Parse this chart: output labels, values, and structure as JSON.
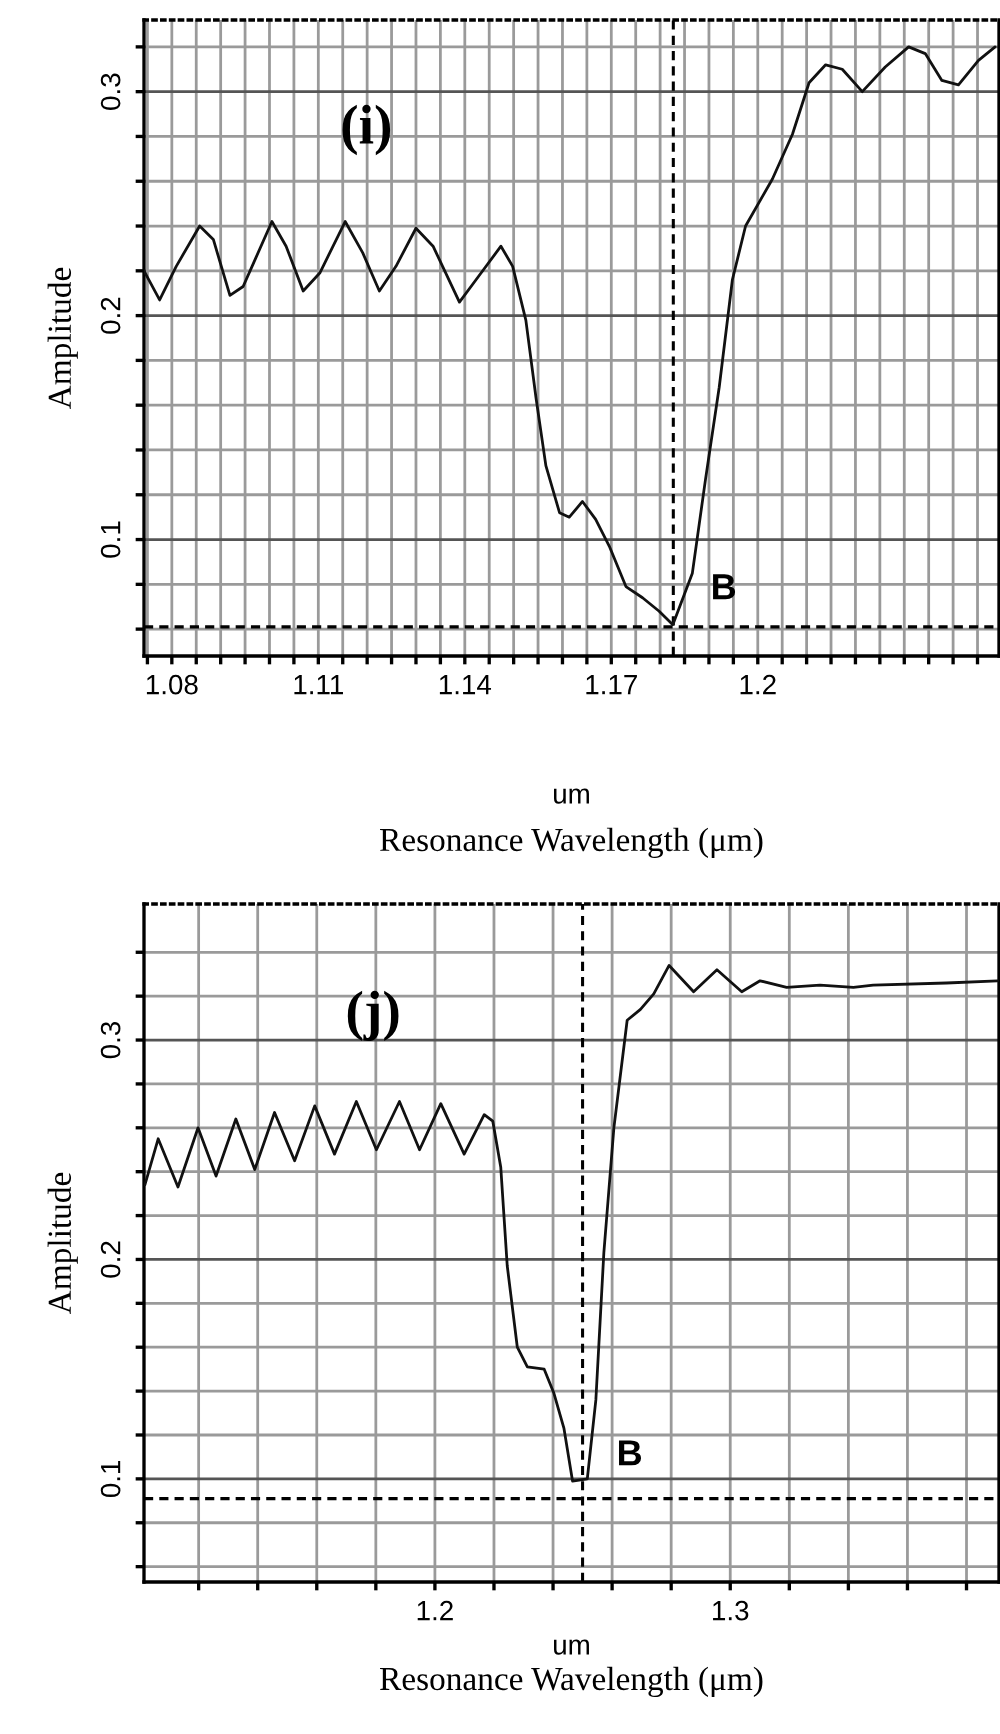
{
  "chart_data": [
    {
      "type": "line",
      "xlabel": "um",
      "ylabel": "Amplitude",
      "grid": true,
      "line_style": "solid",
      "marker": "none",
      "xlim": [
        1.0743,
        1.2494
      ],
      "ylim": [
        0.048,
        0.332
      ],
      "xticks": [
        {
          "value": 1.075,
          "label": null
        },
        {
          "value": 1.08,
          "label": "1.08"
        },
        {
          "value": 1.085,
          "label": null
        },
        {
          "value": 1.09,
          "label": null
        },
        {
          "value": 1.095,
          "label": null
        },
        {
          "value": 1.1,
          "label": null
        },
        {
          "value": 1.105,
          "label": null
        },
        {
          "value": 1.11,
          "label": "1.11"
        },
        {
          "value": 1.115,
          "label": null
        },
        {
          "value": 1.12,
          "label": null
        },
        {
          "value": 1.125,
          "label": null
        },
        {
          "value": 1.13,
          "label": null
        },
        {
          "value": 1.135,
          "label": null
        },
        {
          "value": 1.14,
          "label": "1.14"
        },
        {
          "value": 1.145,
          "label": null
        },
        {
          "value": 1.15,
          "label": null
        },
        {
          "value": 1.155,
          "label": null
        },
        {
          "value": 1.16,
          "label": null
        },
        {
          "value": 1.165,
          "label": null
        },
        {
          "value": 1.17,
          "label": "1.17"
        },
        {
          "value": 1.175,
          "label": null
        },
        {
          "value": 1.18,
          "label": null
        },
        {
          "value": 1.185,
          "label": null
        },
        {
          "value": 1.19,
          "label": null
        },
        {
          "value": 1.195,
          "label": null
        },
        {
          "value": 1.2,
          "label": "1.2"
        },
        {
          "value": 1.205,
          "label": null
        },
        {
          "value": 1.21,
          "label": null
        },
        {
          "value": 1.215,
          "label": null
        },
        {
          "value": 1.22,
          "label": null
        },
        {
          "value": 1.225,
          "label": null
        },
        {
          "value": 1.23,
          "label": null
        },
        {
          "value": 1.235,
          "label": null
        },
        {
          "value": 1.24,
          "label": null
        },
        {
          "value": 1.245,
          "label": null
        }
      ],
      "yticks": [
        {
          "value": 0.06,
          "label": null
        },
        {
          "value": 0.08,
          "label": null
        },
        0.1,
        {
          "value": 0.12,
          "label": null
        },
        {
          "value": 0.14,
          "label": null
        },
        {
          "value": 0.16,
          "label": null
        },
        {
          "value": 0.18,
          "label": null
        },
        0.2,
        {
          "value": 0.22,
          "label": null
        },
        {
          "value": 0.24,
          "label": null
        },
        {
          "value": 0.26,
          "label": null
        },
        {
          "value": 0.28,
          "label": null
        },
        0.3,
        {
          "value": 0.32,
          "label": null
        }
      ],
      "series": [
        {
          "color": "#111111",
          "x": [
            1.0743,
            1.0775,
            1.0809,
            1.0857,
            1.0885,
            1.0919,
            1.0946,
            1.1005,
            1.1034,
            1.1069,
            1.1103,
            1.1155,
            1.1191,
            1.1225,
            1.1259,
            1.13,
            1.1335,
            1.1389,
            1.1423,
            1.1474,
            1.1498,
            1.1525,
            1.1546,
            1.1566,
            1.1594,
            1.1614,
            1.1641,
            1.1668,
            1.1696,
            1.173,
            1.1764,
            1.1798,
            1.1826,
            1.1866,
            1.1893,
            1.1921,
            1.1948,
            1.1975,
            1.203,
            1.2071,
            1.2105,
            1.2139,
            1.2173,
            1.2214,
            1.2261,
            1.2309,
            1.2343,
            1.2377,
            1.2411,
            1.2452,
            1.2486
          ],
          "values": [
            0.22,
            0.207,
            0.222,
            0.24,
            0.234,
            0.209,
            0.213,
            0.242,
            0.231,
            0.211,
            0.219,
            0.242,
            0.228,
            0.211,
            0.222,
            0.239,
            0.231,
            0.206,
            0.216,
            0.231,
            0.222,
            0.198,
            0.163,
            0.133,
            0.112,
            0.11,
            0.117,
            0.109,
            0.097,
            0.079,
            0.074,
            0.068,
            0.062,
            0.085,
            0.127,
            0.168,
            0.216,
            0.24,
            0.261,
            0.281,
            0.304,
            0.312,
            0.31,
            0.3,
            0.311,
            0.32,
            0.317,
            0.305,
            0.303,
            0.314,
            0.32
          ]
        }
      ],
      "ref_lines": [
        {
          "axis": "y",
          "value": 0.061,
          "line_style": "dashed",
          "color": "#000000"
        },
        {
          "axis": "x",
          "value": 1.1827,
          "line_style": "dashed",
          "color": "#000000"
        }
      ],
      "annotations": [
        "(i)",
        "B",
        "Resonance Wavelength (μm)"
      ]
    },
    {
      "type": "line",
      "xlabel": "um",
      "ylabel": "Amplitude",
      "grid": true,
      "line_style": "solid",
      "marker": "none",
      "xlim": [
        1.1015,
        1.391
      ],
      "ylim": [
        0.053,
        0.362
      ],
      "xticks": [
        {
          "value": 1.12,
          "label": null
        },
        {
          "value": 1.14,
          "label": null
        },
        {
          "value": 1.16,
          "label": null
        },
        {
          "value": 1.18,
          "label": null
        },
        1.2,
        {
          "value": 1.22,
          "label": null
        },
        {
          "value": 1.24,
          "label": null
        },
        {
          "value": 1.26,
          "label": null
        },
        {
          "value": 1.28,
          "label": null
        },
        1.3,
        {
          "value": 1.32,
          "label": null
        },
        {
          "value": 1.34,
          "label": null
        },
        {
          "value": 1.36,
          "label": null
        },
        {
          "value": 1.38,
          "label": null
        }
      ],
      "yticks": [
        {
          "value": 0.06,
          "label": null
        },
        {
          "value": 0.08,
          "label": null
        },
        0.1,
        {
          "value": 0.12,
          "label": null
        },
        {
          "value": 0.14,
          "label": null
        },
        {
          "value": 0.16,
          "label": null
        },
        {
          "value": 0.18,
          "label": null
        },
        0.2,
        {
          "value": 0.22,
          "label": null
        },
        {
          "value": 0.24,
          "label": null
        },
        {
          "value": 0.26,
          "label": null
        },
        {
          "value": 0.28,
          "label": null
        },
        0.3,
        {
          "value": 0.32,
          "label": null
        },
        {
          "value": 0.34,
          "label": null
        }
      ],
      "series": [
        {
          "color": "#111111",
          "x": [
            1.1018,
            1.1063,
            1.113,
            1.1198,
            1.1259,
            1.1326,
            1.139,
            1.1457,
            1.1525,
            1.1593,
            1.166,
            1.1734,
            1.1802,
            1.188,
            1.1948,
            1.202,
            1.2099,
            1.2167,
            1.2196,
            1.2223,
            1.2245,
            1.2279,
            1.2313,
            1.237,
            1.2403,
            1.2437,
            1.2466,
            1.2516,
            1.2545,
            1.2572,
            1.2606,
            1.2651,
            1.2696,
            1.2741,
            1.2793,
            1.2876,
            1.2955,
            1.3039,
            1.3101,
            1.3191,
            1.3304,
            1.3417,
            1.3484,
            1.3732,
            1.3905
          ],
          "values": [
            0.234,
            0.255,
            0.233,
            0.26,
            0.238,
            0.264,
            0.241,
            0.267,
            0.245,
            0.27,
            0.248,
            0.272,
            0.25,
            0.272,
            0.25,
            0.271,
            0.248,
            0.266,
            0.263,
            0.242,
            0.197,
            0.16,
            0.151,
            0.15,
            0.139,
            0.123,
            0.099,
            0.1,
            0.136,
            0.203,
            0.26,
            0.309,
            0.314,
            0.321,
            0.334,
            0.322,
            0.332,
            0.322,
            0.327,
            0.324,
            0.325,
            0.324,
            0.325,
            0.326,
            0.327
          ]
        }
      ],
      "ref_lines": [
        {
          "axis": "y",
          "value": 0.091,
          "line_style": "dashed",
          "color": "#000000"
        },
        {
          "axis": "x",
          "value": 1.25,
          "line_style": "dashed",
          "color": "#000000"
        }
      ],
      "annotations": [
        "(j)",
        "B",
        "Resonance Wavelength (μm)"
      ]
    }
  ]
}
